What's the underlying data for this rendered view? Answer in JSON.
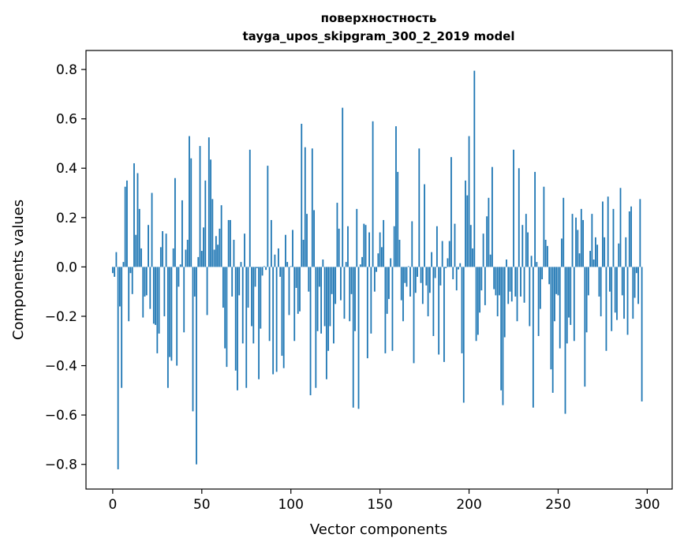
{
  "chart_data": {
    "type": "bar",
    "title": [
      "поверхностность",
      "tayga_upos_skipgram_300_2_2019 model"
    ],
    "xlabel": "Vector components",
    "ylabel": "Components values",
    "xlim": [
      -15,
      314
    ],
    "ylim": [
      -0.9,
      0.877
    ],
    "xticks": [
      0,
      50,
      100,
      150,
      200,
      250,
      300
    ],
    "xtick_labels": [
      "0",
      "50",
      "100",
      "150",
      "200",
      "250",
      "300"
    ],
    "yticks": [
      -0.8,
      -0.6,
      -0.4,
      -0.2,
      0.0,
      0.2,
      0.4,
      0.6,
      0.8
    ],
    "ytick_labels": [
      "−0.8",
      "−0.6",
      "−0.4",
      "−0.2",
      "0.0",
      "0.2",
      "0.4",
      "0.6",
      "0.8"
    ],
    "grid": false,
    "color": "#1f77b4",
    "values": [
      -0.025,
      -0.04,
      0.06,
      -0.82,
      -0.16,
      -0.49,
      0.02,
      0.325,
      0.35,
      -0.22,
      -0.025,
      -0.11,
      0.42,
      0.13,
      0.38,
      0.235,
      0.075,
      -0.205,
      -0.12,
      -0.115,
      0.17,
      -0.17,
      0.3,
      -0.23,
      -0.235,
      -0.35,
      -0.27,
      0.08,
      0.145,
      -0.2,
      0.135,
      -0.49,
      -0.365,
      -0.38,
      0.075,
      0.36,
      -0.4,
      -0.08,
      0.01,
      0.27,
      -0.265,
      0.07,
      0.11,
      0.53,
      0.44,
      -0.585,
      -0.12,
      -0.8,
      0.04,
      0.49,
      0.065,
      0.16,
      0.35,
      -0.195,
      0.525,
      0.435,
      0.275,
      0.07,
      0.125,
      0.09,
      0.155,
      0.25,
      -0.165,
      -0.33,
      -0.405,
      0.19,
      0.19,
      -0.12,
      0.11,
      -0.42,
      -0.5,
      -0.115,
      0.02,
      -0.31,
      0.135,
      -0.49,
      -0.165,
      0.475,
      -0.24,
      -0.31,
      -0.08,
      -0.005,
      -0.455,
      -0.25,
      -0.035,
      0.003,
      -0.012,
      0.41,
      -0.3,
      0.19,
      -0.435,
      0.05,
      -0.425,
      0.075,
      -0.04,
      -0.36,
      -0.41,
      0.13,
      0.02,
      -0.195,
      0.003,
      0.15,
      -0.3,
      -0.085,
      -0.19,
      -0.18,
      0.58,
      0.11,
      0.485,
      0.215,
      -0.1,
      -0.52,
      0.48,
      0.23,
      -0.49,
      -0.26,
      -0.08,
      -0.27,
      0.03,
      -0.24,
      -0.455,
      -0.34,
      -0.24,
      -0.11,
      -0.31,
      -0.15,
      0.26,
      0.155,
      -0.135,
      0.645,
      -0.21,
      0.02,
      0.165,
      -0.22,
      -0.11,
      -0.57,
      -0.26,
      0.235,
      -0.575,
      0.01,
      0.04,
      0.175,
      0.17,
      -0.37,
      0.14,
      -0.27,
      0.59,
      -0.1,
      -0.02,
      0.055,
      0.14,
      0.08,
      0.19,
      -0.35,
      -0.19,
      -0.13,
      0.035,
      -0.34,
      0.165,
      0.57,
      0.385,
      0.11,
      -0.135,
      -0.22,
      -0.065,
      -0.08,
      0.003,
      -0.12,
      0.185,
      -0.39,
      -0.105,
      -0.04,
      0.48,
      -0.065,
      -0.15,
      0.335,
      -0.075,
      -0.2,
      -0.105,
      0.06,
      -0.28,
      -0.045,
      0.165,
      -0.355,
      -0.075,
      0.105,
      -0.385,
      -0.005,
      0.035,
      0.105,
      0.445,
      -0.05,
      0.175,
      -0.095,
      -0.01,
      0.015,
      -0.35,
      -0.55,
      0.35,
      0.29,
      0.53,
      0.17,
      0.075,
      0.795,
      -0.3,
      -0.275,
      -0.185,
      -0.095,
      0.135,
      -0.155,
      0.205,
      0.28,
      0.05,
      0.405,
      -0.09,
      -0.115,
      -0.2,
      -0.115,
      -0.5,
      -0.56,
      -0.285,
      0.03,
      -0.15,
      -0.1,
      -0.14,
      0.475,
      -0.12,
      -0.22,
      0.4,
      -0.12,
      0.17,
      -0.145,
      0.215,
      0.14,
      -0.24,
      0.045,
      -0.57,
      0.385,
      0.02,
      -0.28,
      -0.17,
      -0.05,
      0.325,
      0.11,
      0.085,
      -0.07,
      -0.415,
      -0.51,
      -0.22,
      -0.11,
      -0.115,
      -0.33,
      0.115,
      0.28,
      -0.595,
      -0.31,
      -0.205,
      -0.235,
      0.215,
      -0.3,
      0.2,
      0.15,
      0.055,
      0.235,
      0.19,
      -0.485,
      -0.265,
      -0.115,
      0.065,
      0.215,
      0.03,
      0.12,
      0.09,
      -0.12,
      -0.2,
      0.265,
      0.12,
      -0.34,
      0.285,
      -0.1,
      -0.26,
      0.235,
      -0.185,
      -0.215,
      0.095,
      0.32,
      -0.115,
      -0.21,
      0.12,
      -0.275,
      0.225,
      0.245,
      -0.21,
      -0.125,
      -0.025,
      -0.15,
      0.275,
      -0.545
    ]
  }
}
